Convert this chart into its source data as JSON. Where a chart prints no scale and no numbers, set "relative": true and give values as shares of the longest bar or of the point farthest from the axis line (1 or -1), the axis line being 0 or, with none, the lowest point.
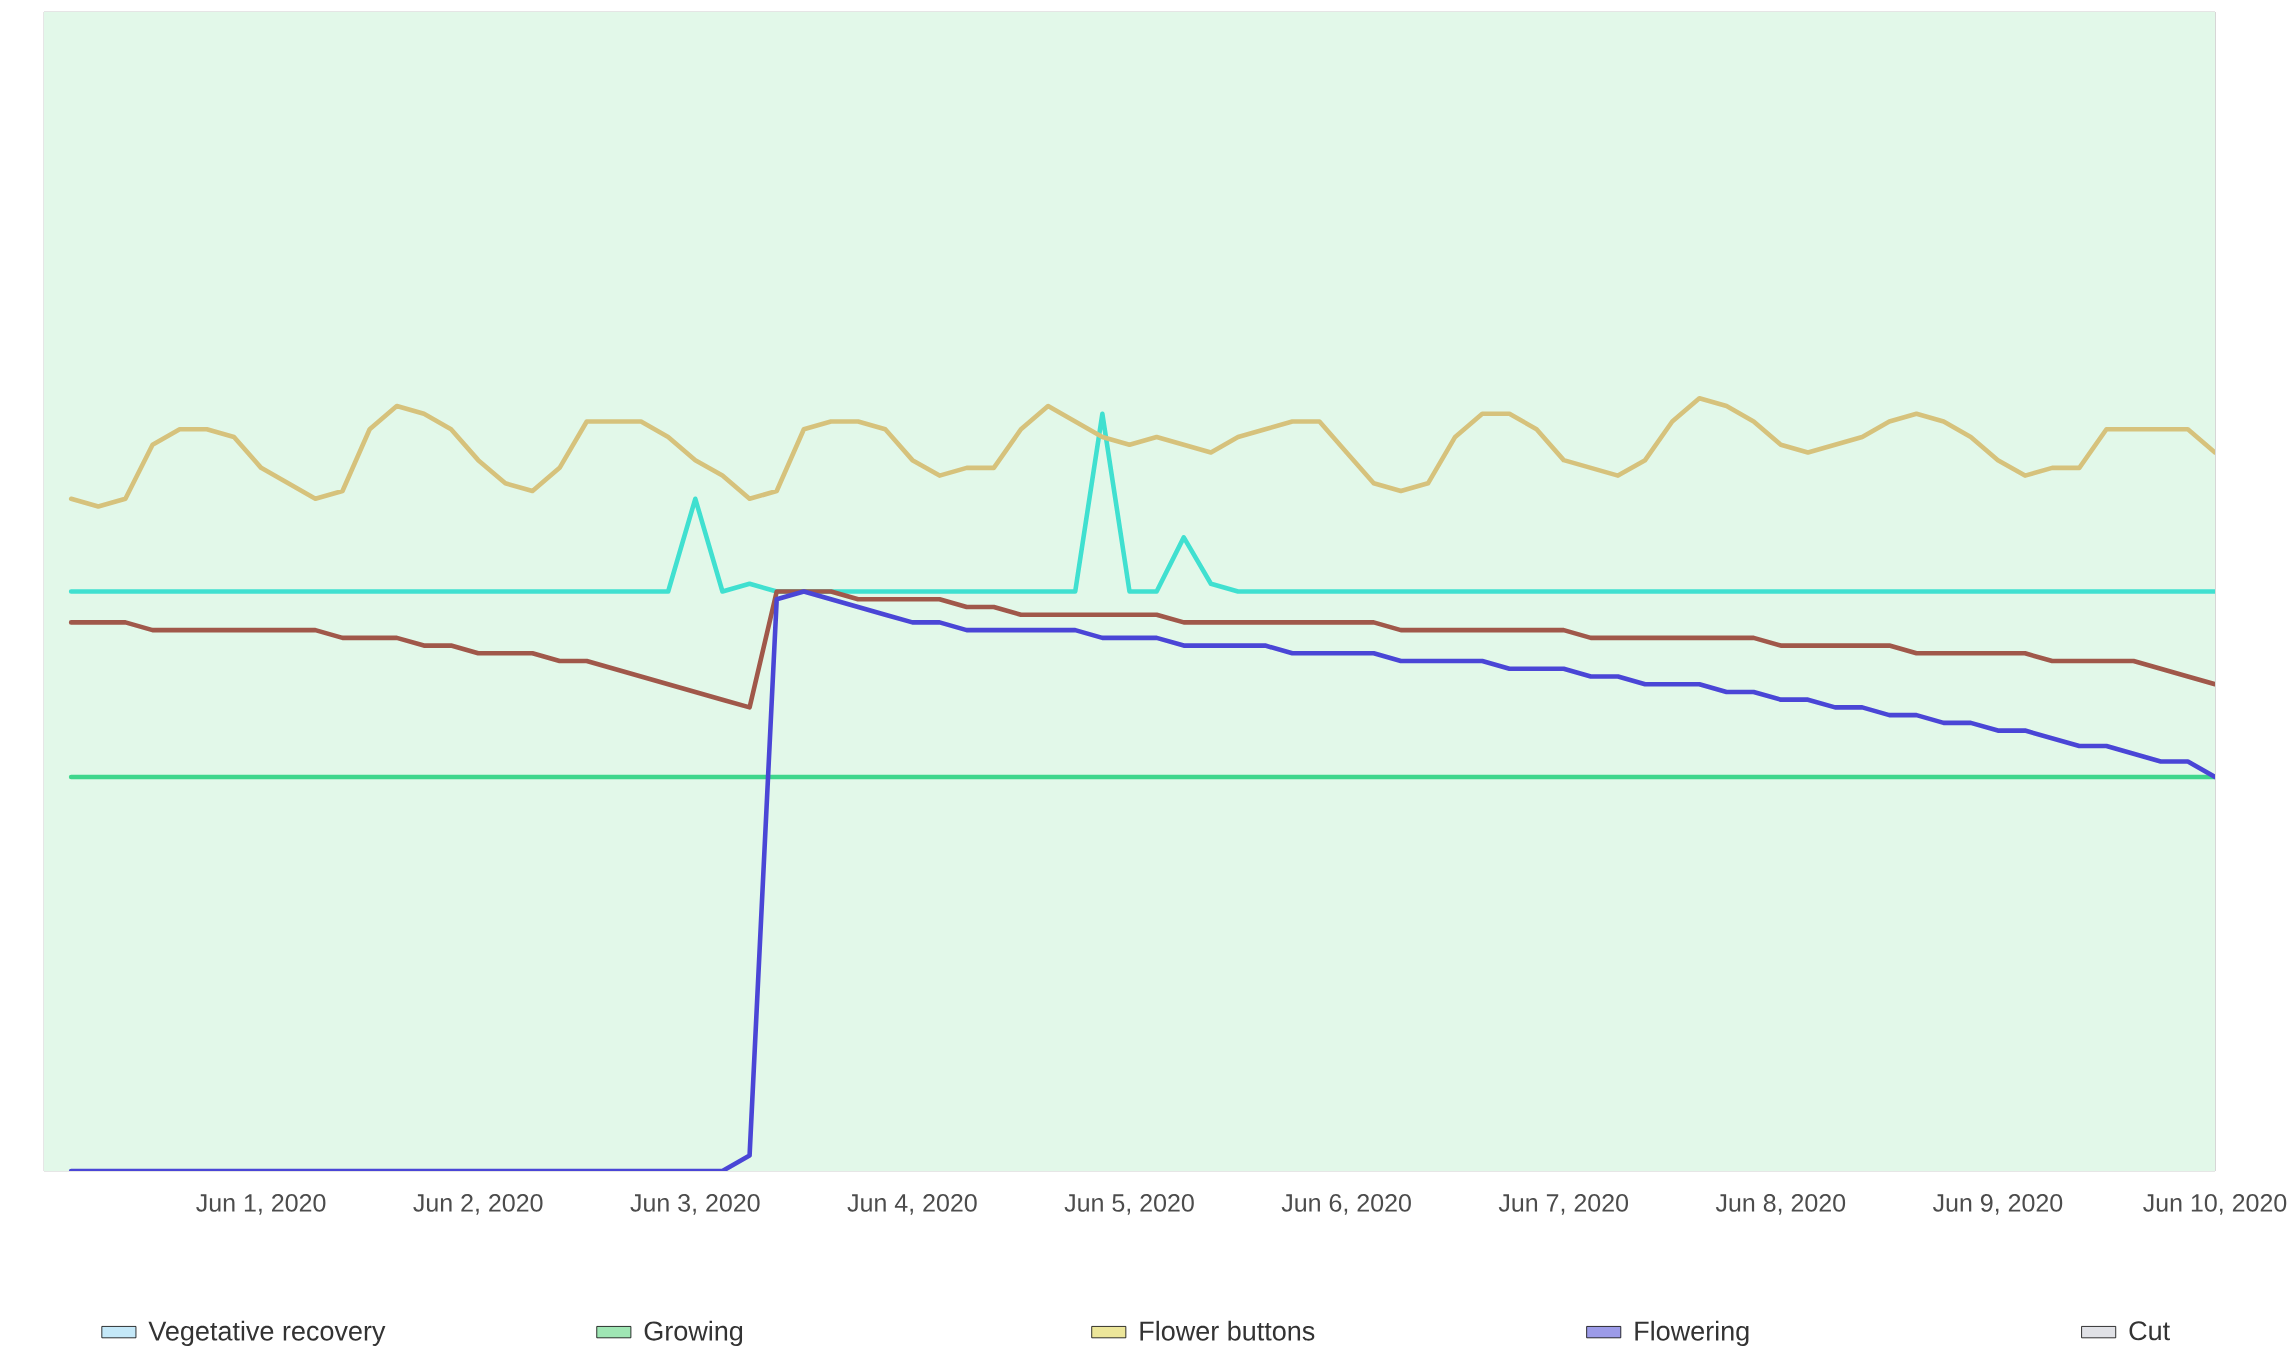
{
  "chart_data": {
    "type": "line",
    "relative": true,
    "marker": "none",
    "line_style": "solid",
    "grid": "x",
    "legend": "bottom",
    "xlim": [
      "2020-05-31T00:00",
      "2020-06-10T00:00"
    ],
    "xticks": [
      {
        "value": "2020-06-01",
        "label": "Jun 1, 2020"
      },
      {
        "value": "2020-06-02",
        "label": "Jun 2, 2020"
      },
      {
        "value": "2020-06-03",
        "label": "Jun 3, 2020"
      },
      {
        "value": "2020-06-04",
        "label": "Jun 4, 2020"
      },
      {
        "value": "2020-06-05",
        "label": "Jun 5, 2020"
      },
      {
        "value": "2020-06-06",
        "label": "Jun 6, 2020"
      },
      {
        "value": "2020-06-07",
        "label": "Jun 7, 2020"
      },
      {
        "value": "2020-06-08",
        "label": "Jun 8, 2020"
      },
      {
        "value": "2020-06-09",
        "label": "Jun 9, 2020"
      },
      {
        "value": "2020-06-10",
        "label": "Jun 10, 2020"
      }
    ],
    "x": [
      "2020-05-31T03:00",
      "2020-05-31T06:00",
      "2020-05-31T09:00",
      "2020-05-31T12:00",
      "2020-05-31T15:00",
      "2020-05-31T18:00",
      "2020-05-31T21:00",
      "2020-06-01T00:00",
      "2020-06-01T03:00",
      "2020-06-01T06:00",
      "2020-06-01T09:00",
      "2020-06-01T12:00",
      "2020-06-01T15:00",
      "2020-06-01T18:00",
      "2020-06-01T21:00",
      "2020-06-02T00:00",
      "2020-06-02T03:00",
      "2020-06-02T06:00",
      "2020-06-02T09:00",
      "2020-06-02T12:00",
      "2020-06-02T15:00",
      "2020-06-02T18:00",
      "2020-06-02T21:00",
      "2020-06-03T00:00",
      "2020-06-03T03:00",
      "2020-06-03T06:00",
      "2020-06-03T09:00",
      "2020-06-03T12:00",
      "2020-06-03T15:00",
      "2020-06-03T18:00",
      "2020-06-03T21:00",
      "2020-06-04T00:00",
      "2020-06-04T03:00",
      "2020-06-04T06:00",
      "2020-06-04T09:00",
      "2020-06-04T12:00",
      "2020-06-04T15:00",
      "2020-06-04T18:00",
      "2020-06-04T21:00",
      "2020-06-05T00:00",
      "2020-06-05T03:00",
      "2020-06-05T06:00",
      "2020-06-05T09:00",
      "2020-06-05T12:00",
      "2020-06-05T15:00",
      "2020-06-05T18:00",
      "2020-06-05T21:00",
      "2020-06-06T00:00",
      "2020-06-06T03:00",
      "2020-06-06T06:00",
      "2020-06-06T09:00",
      "2020-06-06T12:00",
      "2020-06-06T15:00",
      "2020-06-06T18:00",
      "2020-06-06T21:00",
      "2020-06-07T00:00",
      "2020-06-07T03:00",
      "2020-06-07T06:00",
      "2020-06-07T09:00",
      "2020-06-07T12:00",
      "2020-06-07T15:00",
      "2020-06-07T18:00",
      "2020-06-07T21:00",
      "2020-06-08T00:00",
      "2020-06-08T03:00",
      "2020-06-08T06:00",
      "2020-06-08T09:00",
      "2020-06-08T12:00",
      "2020-06-08T15:00",
      "2020-06-08T18:00",
      "2020-06-08T21:00",
      "2020-06-09T00:00",
      "2020-06-09T03:00",
      "2020-06-09T06:00",
      "2020-06-09T09:00",
      "2020-06-09T12:00",
      "2020-06-09T15:00",
      "2020-06-09T18:00",
      "2020-06-09T21:00",
      "2020-06-10T00:00"
    ],
    "series": [
      {
        "color": "#3ed68c",
        "values": [
          0.51,
          0.51,
          0.51,
          0.51,
          0.51,
          0.51,
          0.51,
          0.51,
          0.51,
          0.51,
          0.51,
          0.51,
          0.51,
          0.51,
          0.51,
          0.51,
          0.51,
          0.51,
          0.51,
          0.51,
          0.51,
          0.51,
          0.51,
          0.51,
          0.51,
          0.51,
          0.51,
          0.51,
          0.51,
          0.51,
          0.51,
          0.51,
          0.51,
          0.51,
          0.51,
          0.51,
          0.51,
          0.51,
          0.51,
          0.51,
          0.51,
          0.51,
          0.51,
          0.51,
          0.51,
          0.51,
          0.51,
          0.51,
          0.51,
          0.51,
          0.51,
          0.51,
          0.51,
          0.51,
          0.51,
          0.51,
          0.51,
          0.51,
          0.51,
          0.51,
          0.51,
          0.51,
          0.51,
          0.51,
          0.51,
          0.51,
          0.51,
          0.51,
          0.51,
          0.51,
          0.51,
          0.51,
          0.51,
          0.51,
          0.51,
          0.51,
          0.51,
          0.51,
          0.51,
          0.51
        ]
      },
      {
        "color": "#40e0d0",
        "values": [
          0.75,
          0.75,
          0.75,
          0.75,
          0.75,
          0.75,
          0.75,
          0.75,
          0.75,
          0.75,
          0.75,
          0.75,
          0.75,
          0.75,
          0.75,
          0.75,
          0.75,
          0.75,
          0.75,
          0.75,
          0.75,
          0.75,
          0.75,
          0.87,
          0.75,
          0.76,
          0.75,
          0.75,
          0.75,
          0.75,
          0.75,
          0.75,
          0.75,
          0.75,
          0.75,
          0.75,
          0.75,
          0.75,
          0.98,
          0.75,
          0.75,
          0.82,
          0.76,
          0.75,
          0.75,
          0.75,
          0.75,
          0.75,
          0.75,
          0.75,
          0.75,
          0.75,
          0.75,
          0.75,
          0.75,
          0.75,
          0.75,
          0.75,
          0.75,
          0.75,
          0.75,
          0.75,
          0.75,
          0.75,
          0.75,
          0.75,
          0.75,
          0.75,
          0.75,
          0.75,
          0.75,
          0.75,
          0.75,
          0.75,
          0.75,
          0.75,
          0.75,
          0.75,
          0.75,
          0.75
        ]
      },
      {
        "color": "#d6c27c",
        "values": [
          0.87,
          0.86,
          0.87,
          0.94,
          0.96,
          0.96,
          0.95,
          0.91,
          0.89,
          0.87,
          0.88,
          0.96,
          0.99,
          0.98,
          0.96,
          0.92,
          0.89,
          0.88,
          0.91,
          0.97,
          0.97,
          0.97,
          0.95,
          0.92,
          0.9,
          0.87,
          0.88,
          0.96,
          0.97,
          0.97,
          0.96,
          0.92,
          0.9,
          0.91,
          0.91,
          0.96,
          0.99,
          0.97,
          0.95,
          0.94,
          0.95,
          0.94,
          0.93,
          0.95,
          0.96,
          0.97,
          0.97,
          0.93,
          0.89,
          0.88,
          0.89,
          0.95,
          0.98,
          0.98,
          0.96,
          0.92,
          0.91,
          0.9,
          0.92,
          0.97,
          1,
          0.99,
          0.97,
          0.94,
          0.93,
          0.94,
          0.95,
          0.97,
          0.98,
          0.97,
          0.95,
          0.92,
          0.9,
          0.91,
          0.91,
          0.96,
          0.96,
          0.96,
          0.96,
          0.93
        ]
      },
      {
        "color": "#a0584a",
        "values": [
          0.71,
          0.71,
          0.71,
          0.7,
          0.7,
          0.7,
          0.7,
          0.7,
          0.7,
          0.7,
          0.69,
          0.69,
          0.69,
          0.68,
          0.68,
          0.67,
          0.67,
          0.67,
          0.66,
          0.66,
          0.65,
          0.64,
          0.63,
          0.62,
          0.61,
          0.6,
          0.75,
          0.75,
          0.75,
          0.74,
          0.74,
          0.74,
          0.74,
          0.73,
          0.73,
          0.72,
          0.72,
          0.72,
          0.72,
          0.72,
          0.72,
          0.71,
          0.71,
          0.71,
          0.71,
          0.71,
          0.71,
          0.71,
          0.71,
          0.7,
          0.7,
          0.7,
          0.7,
          0.7,
          0.7,
          0.7,
          0.69,
          0.69,
          0.69,
          0.69,
          0.69,
          0.69,
          0.69,
          0.68,
          0.68,
          0.68,
          0.68,
          0.68,
          0.67,
          0.67,
          0.67,
          0.67,
          0.67,
          0.66,
          0.66,
          0.66,
          0.66,
          0.65,
          0.64,
          0.63
        ]
      },
      {
        "color": "#4a46d6",
        "values": [
          0,
          0,
          0,
          0,
          0,
          0,
          0,
          0,
          0,
          0,
          0,
          0,
          0,
          0,
          0,
          0,
          0,
          0,
          0,
          0,
          0,
          0,
          0,
          0,
          0,
          0.02,
          0.74,
          0.75,
          0.74,
          0.73,
          0.72,
          0.71,
          0.71,
          0.7,
          0.7,
          0.7,
          0.7,
          0.7,
          0.69,
          0.69,
          0.69,
          0.68,
          0.68,
          0.68,
          0.68,
          0.67,
          0.67,
          0.67,
          0.67,
          0.66,
          0.66,
          0.66,
          0.66,
          0.65,
          0.65,
          0.65,
          0.64,
          0.64,
          0.63,
          0.63,
          0.63,
          0.62,
          0.62,
          0.61,
          0.61,
          0.6,
          0.6,
          0.59,
          0.59,
          0.58,
          0.58,
          0.57,
          0.57,
          0.56,
          0.55,
          0.55,
          0.54,
          0.53,
          0.53,
          0.51
        ]
      },
      {
        "type": "area",
        "name": "Vegetative recovery",
        "color": "#c4e8f8",
        "values": [
          null,
          null,
          null,
          null,
          null,
          null,
          null,
          null,
          null,
          null,
          null,
          null,
          null,
          null,
          null,
          null,
          null,
          null,
          null,
          null,
          null,
          null,
          null,
          null,
          null,
          null,
          null,
          null,
          null,
          null,
          null,
          null,
          null,
          null,
          null,
          null,
          null,
          null,
          null,
          null,
          null,
          null,
          null,
          null,
          null,
          null,
          null,
          null,
          null,
          null,
          null,
          null,
          null,
          null,
          null,
          null,
          null,
          null,
          null,
          null,
          null,
          null,
          null,
          null,
          null,
          null,
          null,
          null,
          null,
          null,
          null,
          null,
          null,
          null,
          null,
          null,
          null,
          null,
          null,
          null
        ]
      },
      {
        "type": "area",
        "name": "Growing",
        "color": "#9fe6b4",
        "values": [
          null,
          null,
          null,
          null,
          null,
          null,
          null,
          null,
          null,
          null,
          null,
          null,
          null,
          null,
          null,
          null,
          null,
          null,
          null,
          null,
          null,
          null,
          null,
          null,
          null,
          null,
          null,
          null,
          null,
          null,
          null,
          null,
          null,
          null,
          null,
          null,
          null,
          null,
          null,
          null,
          null,
          null,
          null,
          null,
          null,
          null,
          null,
          null,
          null,
          null,
          null,
          null,
          null,
          null,
          null,
          null,
          null,
          null,
          null,
          null,
          null,
          null,
          null,
          null,
          null,
          null,
          null,
          null,
          null,
          null,
          null,
          null,
          null,
          null,
          null,
          null,
          null,
          null,
          null,
          null
        ]
      },
      {
        "type": "area",
        "name": "Flower buttons",
        "color": "#ece69a",
        "values": [
          null,
          null,
          null,
          null,
          null,
          null,
          null,
          null,
          null,
          null,
          null,
          null,
          null,
          null,
          null,
          null,
          null,
          null,
          null,
          null,
          null,
          null,
          null,
          null,
          null,
          null,
          null,
          null,
          null,
          null,
          null,
          null,
          null,
          null,
          null,
          null,
          null,
          null,
          null,
          null,
          null,
          null,
          null,
          null,
          null,
          null,
          null,
          null,
          null,
          null,
          null,
          null,
          null,
          null,
          null,
          null,
          null,
          null,
          null,
          null,
          null,
          null,
          null,
          null,
          null,
          null,
          null,
          null,
          null,
          null,
          null,
          null,
          null,
          null,
          null,
          null,
          null,
          null,
          null,
          null
        ]
      },
      {
        "type": "area",
        "name": "Flowering",
        "color": "#9c9be8",
        "values": [
          null,
          null,
          null,
          null,
          null,
          null,
          null,
          null,
          null,
          null,
          null,
          null,
          null,
          null,
          null,
          null,
          null,
          null,
          null,
          null,
          null,
          null,
          null,
          null,
          null,
          null,
          null,
          null,
          null,
          null,
          null,
          null,
          null,
          null,
          null,
          null,
          null,
          null,
          null,
          null,
          null,
          null,
          null,
          null,
          null,
          null,
          null,
          null,
          null,
          null,
          null,
          null,
          null,
          null,
          null,
          null,
          null,
          null,
          null,
          null,
          null,
          null,
          null,
          null,
          null,
          null,
          null,
          null,
          null,
          null,
          null,
          null,
          null,
          null,
          null,
          null,
          null,
          null,
          null,
          null
        ]
      },
      {
        "type": "area",
        "name": "Cut",
        "color": "#e0e1e6",
        "values": [
          null,
          null,
          null,
          null,
          null,
          null,
          null,
          null,
          null,
          null,
          null,
          null,
          null,
          null,
          null,
          null,
          null,
          null,
          null,
          null,
          null,
          null,
          null,
          null,
          null,
          null,
          null,
          null,
          null,
          null,
          null,
          null,
          null,
          null,
          null,
          null,
          null,
          null,
          null,
          null,
          null,
          null,
          null,
          null,
          null,
          null,
          null,
          null,
          null,
          null,
          null,
          null,
          null,
          null,
          null,
          null,
          null,
          null,
          null,
          null,
          null,
          null,
          null,
          null,
          null,
          null,
          null,
          null,
          null,
          null,
          null,
          null,
          null,
          null,
          null,
          null,
          null,
          null,
          null,
          null
        ]
      }
    ],
    "bands": [
      {
        "axis": "x",
        "from": "2020-05-31T00:00",
        "to": "2020-06-10T00:00",
        "color": "#e2f8e9"
      }
    ]
  }
}
